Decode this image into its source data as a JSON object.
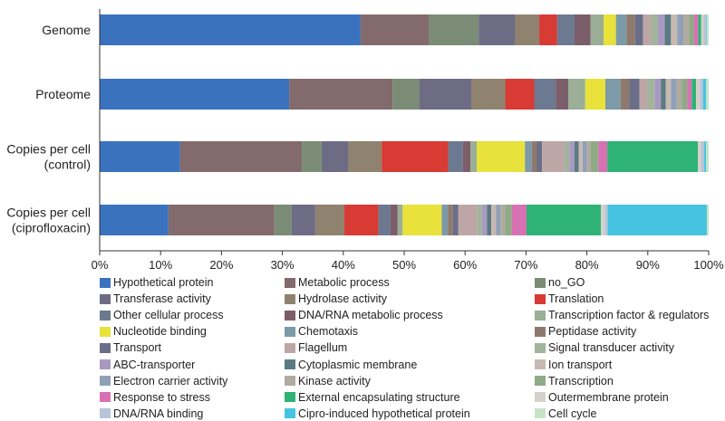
{
  "chart_data": {
    "type": "stacked-bar-horizontal",
    "title": "",
    "xlabel": "",
    "ylabel": "",
    "xlim": [
      0,
      100
    ],
    "x_tick_labels": [
      "0%",
      "10%",
      "20%",
      "30%",
      "40%",
      "50%",
      "60%",
      "70%",
      "80%",
      "90%",
      "100%"
    ],
    "grid": false,
    "legend_position": "bottom",
    "rows": [
      {
        "label_lines": [
          "Genome"
        ]
      },
      {
        "label_lines": [
          "Proteome"
        ]
      },
      {
        "label_lines": [
          "Copies per cell",
          "(control)"
        ]
      },
      {
        "label_lines": [
          "Copies per cell",
          "(ciprofloxacin)"
        ]
      }
    ],
    "series": [
      {
        "name": "Hypothetical protein",
        "color": "#3a72be",
        "values": [
          42.2,
          30.1,
          12.7,
          11.1
        ]
      },
      {
        "name": "Metabolic process",
        "color": "#836a6c",
        "values": [
          11.1,
          16.4,
          19.2,
          17.1
        ]
      },
      {
        "name": "no_GO",
        "color": "#7a8c76",
        "values": [
          8.0,
          4.2,
          3.1,
          2.8
        ]
      },
      {
        "name": "Transferase activity",
        "color": "#6e6c84",
        "values": [
          5.9,
          8.3,
          4.3,
          3.8
        ]
      },
      {
        "name": "Hydrolase activity",
        "color": "#8f8370",
        "values": [
          3.9,
          5.4,
          5.2,
          4.7
        ]
      },
      {
        "name": "Translation",
        "color": "#d83a34",
        "values": [
          2.9,
          4.6,
          10.5,
          5.5
        ]
      },
      {
        "name": "Other cellular process",
        "color": "#6b7a90",
        "values": [
          2.8,
          3.4,
          2.3,
          1.9
        ]
      },
      {
        "name": "DNA/RNA metabolic process",
        "color": "#7b5e6a",
        "values": [
          2.6,
          2.0,
          1.2,
          1.2
        ]
      },
      {
        "name": "Transcription factor & regulators",
        "color": "#9bae96",
        "values": [
          2.1,
          2.7,
          1.0,
          0.8
        ]
      },
      {
        "name": "Nucleotide binding",
        "color": "#e8e23b",
        "values": [
          2.0,
          3.2,
          7.6,
          6.3
        ]
      },
      {
        "name": "Chemotaxis",
        "color": "#7c9aa8",
        "values": [
          1.7,
          2.4,
          1.1,
          1.0
        ]
      },
      {
        "name": "Peptidase activity",
        "color": "#8e7a6c",
        "values": [
          1.4,
          1.4,
          0.8,
          0.8
        ]
      },
      {
        "name": "Transport",
        "color": "#6a6e88",
        "values": [
          1.3,
          1.6,
          0.8,
          0.9
        ]
      },
      {
        "name": "Flagellum",
        "color": "#bfa6a6",
        "values": [
          1.2,
          1.2,
          3.5,
          3.0
        ]
      },
      {
        "name": "Signal transducer activity",
        "color": "#a3b39c",
        "values": [
          1.2,
          1.2,
          0.8,
          0.8
        ]
      },
      {
        "name": "ABC-transporter",
        "color": "#a79ac1",
        "values": [
          1.1,
          1.0,
          0.8,
          0.8
        ]
      },
      {
        "name": "Cytoplasmic membrane",
        "color": "#5b7b82",
        "values": [
          1.0,
          0.8,
          0.7,
          0.7
        ]
      },
      {
        "name": "Ion transport",
        "color": "#c7b9b1",
        "values": [
          1.0,
          0.8,
          0.6,
          0.8
        ]
      },
      {
        "name": "Electron carrier activity",
        "color": "#8fa0b8",
        "values": [
          1.0,
          0.9,
          0.7,
          0.7
        ]
      },
      {
        "name": "Kinase activity",
        "color": "#b1aaa0",
        "values": [
          0.9,
          0.8,
          0.6,
          0.7
        ]
      },
      {
        "name": "Transcription",
        "color": "#8fab86",
        "values": [
          0.8,
          0.9,
          1.2,
          1.1
        ]
      },
      {
        "name": "Response to stress",
        "color": "#d871b3",
        "values": [
          0.7,
          0.7,
          1.4,
          2.4
        ]
      },
      {
        "name": "External encapsulating structure",
        "color": "#2fb275",
        "values": [
          0.5,
          0.7,
          14.3,
          12.0
        ]
      },
      {
        "name": "Outermembrane protein",
        "color": "#d6d0cb",
        "values": [
          0.4,
          0.6,
          0.5,
          0.6
        ]
      },
      {
        "name": "DNA/RNA binding",
        "color": "#b8c4d8",
        "values": [
          0.4,
          0.5,
          0.5,
          0.5
        ]
      },
      {
        "name": "Cipro-induced hypothetical protein",
        "color": "#46c3e0",
        "values": [
          0.1,
          0.5,
          0.3,
          16.0
        ]
      },
      {
        "name": "Cell cycle",
        "color": "#c6e4c4",
        "values": [
          0.3,
          0.4,
          0.4,
          0.3
        ]
      }
    ]
  }
}
